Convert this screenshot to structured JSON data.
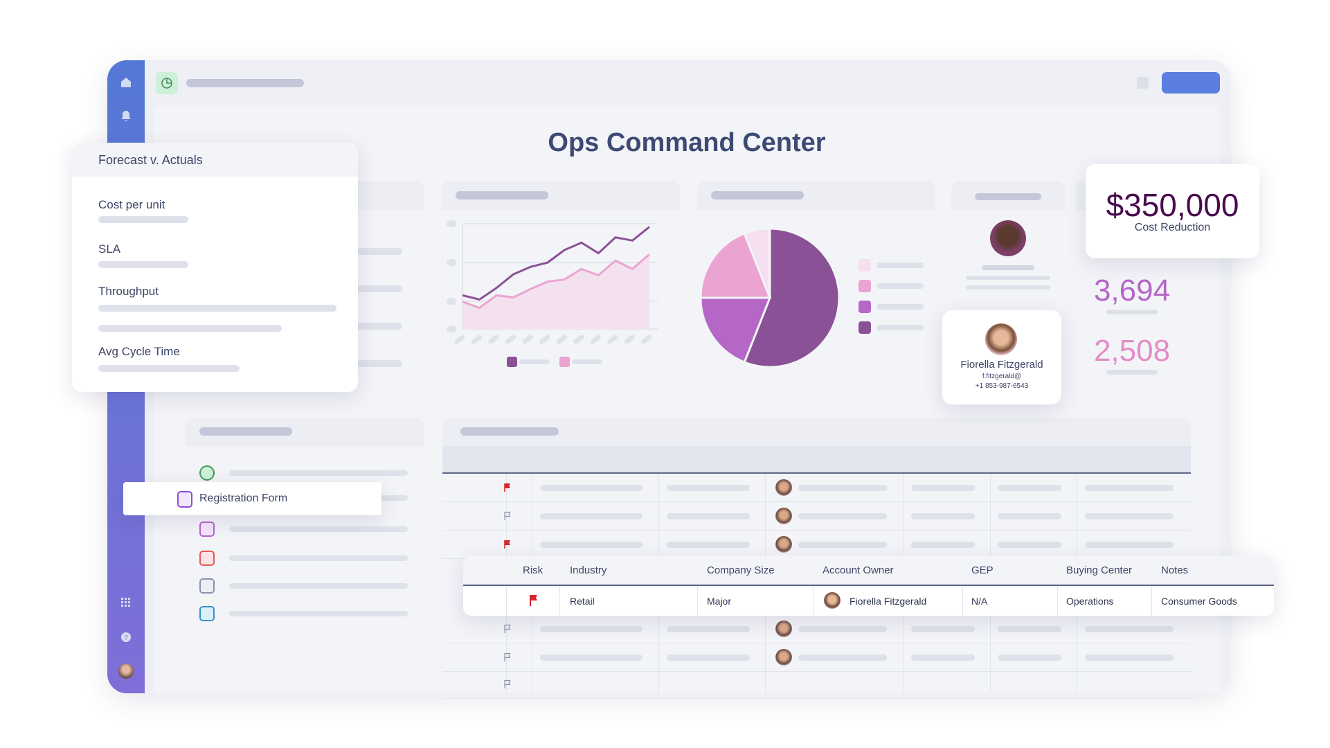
{
  "header": {
    "title": "Ops Command Center",
    "app_icon": "pie-clock-icon"
  },
  "sidebar": {
    "icons": [
      "home-icon",
      "bell-icon",
      "apps-grid-icon",
      "help-icon",
      "user-avatar"
    ]
  },
  "forecast_card": {
    "title": "Forecast v. Actuals",
    "metrics": [
      {
        "label": "Cost per unit"
      },
      {
        "label": "SLA"
      },
      {
        "label": "Throughput"
      },
      {
        "label": "Avg Cycle Time"
      }
    ]
  },
  "kpis": {
    "cost": {
      "value": "$350,000",
      "label": "Cost Reduction"
    },
    "stat1": "3,694",
    "stat2": "2,508"
  },
  "contact": {
    "name": "Fiorella Fitzgerald",
    "email": "f.fitzgerald@",
    "phone": "+1 853-987-6543"
  },
  "list": {
    "highlighted": "Registration Form"
  },
  "table": {
    "headers": [
      "Risk",
      "Industry",
      "Company Size",
      "Account Owner",
      "GEP",
      "Buying Center",
      "Notes"
    ],
    "row": {
      "risk": "flagged",
      "industry": "Retail",
      "company_size": "Major",
      "account_owner": "Fiorella Fitzgerald",
      "gep": "N/A",
      "buying_center": "Operations",
      "notes": "Consumer Goods"
    },
    "background_row_flags": [
      true,
      false,
      true,
      false,
      false,
      false
    ]
  },
  "colors": {
    "accent": "#5b7fe0",
    "dark_purple": "#8b5196",
    "purple": "#b567c7",
    "pink": "#eba4d1",
    "light_pink": "#f5dff0",
    "flag_red": "#d7262e",
    "title": "#3d4a73"
  },
  "chart_data": [
    {
      "type": "line",
      "series": [
        {
          "color": "#8b5196",
          "values": [
            32,
            28,
            39,
            52,
            59,
            63,
            75,
            82,
            72,
            87,
            84,
            97
          ]
        },
        {
          "color": "#eba4d1",
          "values": [
            26,
            20,
            32,
            30,
            38,
            45,
            47,
            57,
            51,
            65,
            57,
            71
          ],
          "fill": true
        }
      ],
      "ylim": [
        0,
        100
      ],
      "grid": true
    },
    {
      "type": "pie",
      "slices": [
        {
          "color": "#8b5196",
          "value": 56
        },
        {
          "color": "#b567c7",
          "value": 19
        },
        {
          "color": "#eba4d1",
          "value": 19
        },
        {
          "color": "#f5dff0",
          "value": 6
        }
      ]
    }
  ]
}
